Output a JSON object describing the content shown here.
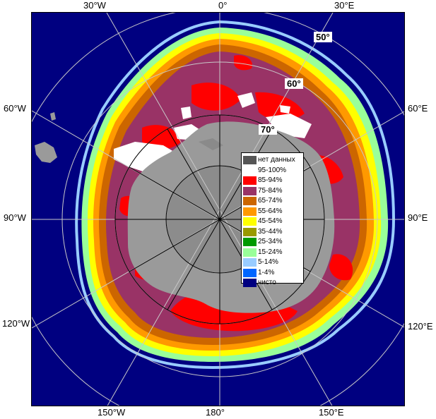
{
  "axis_labels": {
    "top": [
      "30°W",
      "0°",
      "30°E"
    ],
    "left": [
      "60°W",
      "90°W",
      "120°W"
    ],
    "right": [
      "60°E",
      "90°E",
      "120°E"
    ],
    "bottom": [
      "150°W",
      "180°",
      "150°E"
    ]
  },
  "latitude_labels": [
    "50°",
    "60°",
    "70°"
  ],
  "legend": [
    {
      "label": "нет данных",
      "color": "#555555"
    },
    {
      "label": "95-100%",
      "color": "#ffffff"
    },
    {
      "label": "85-94%",
      "color": "#ff0000"
    },
    {
      "label": "75-84%",
      "color": "#993366"
    },
    {
      "label": "65-74%",
      "color": "#cc6600"
    },
    {
      "label": "55-64%",
      "color": "#ff9900"
    },
    {
      "label": "45-54%",
      "color": "#ffff00"
    },
    {
      "label": "35-44%",
      "color": "#999900"
    },
    {
      "label": "25-34%",
      "color": "#009900"
    },
    {
      "label": "15-24%",
      "color": "#99ff99"
    },
    {
      "label": "5-14%",
      "color": "#99ccff"
    },
    {
      "label": "1-4%",
      "color": "#0066ff"
    },
    {
      "label": "чисто",
      "color": "#000080"
    }
  ]
}
